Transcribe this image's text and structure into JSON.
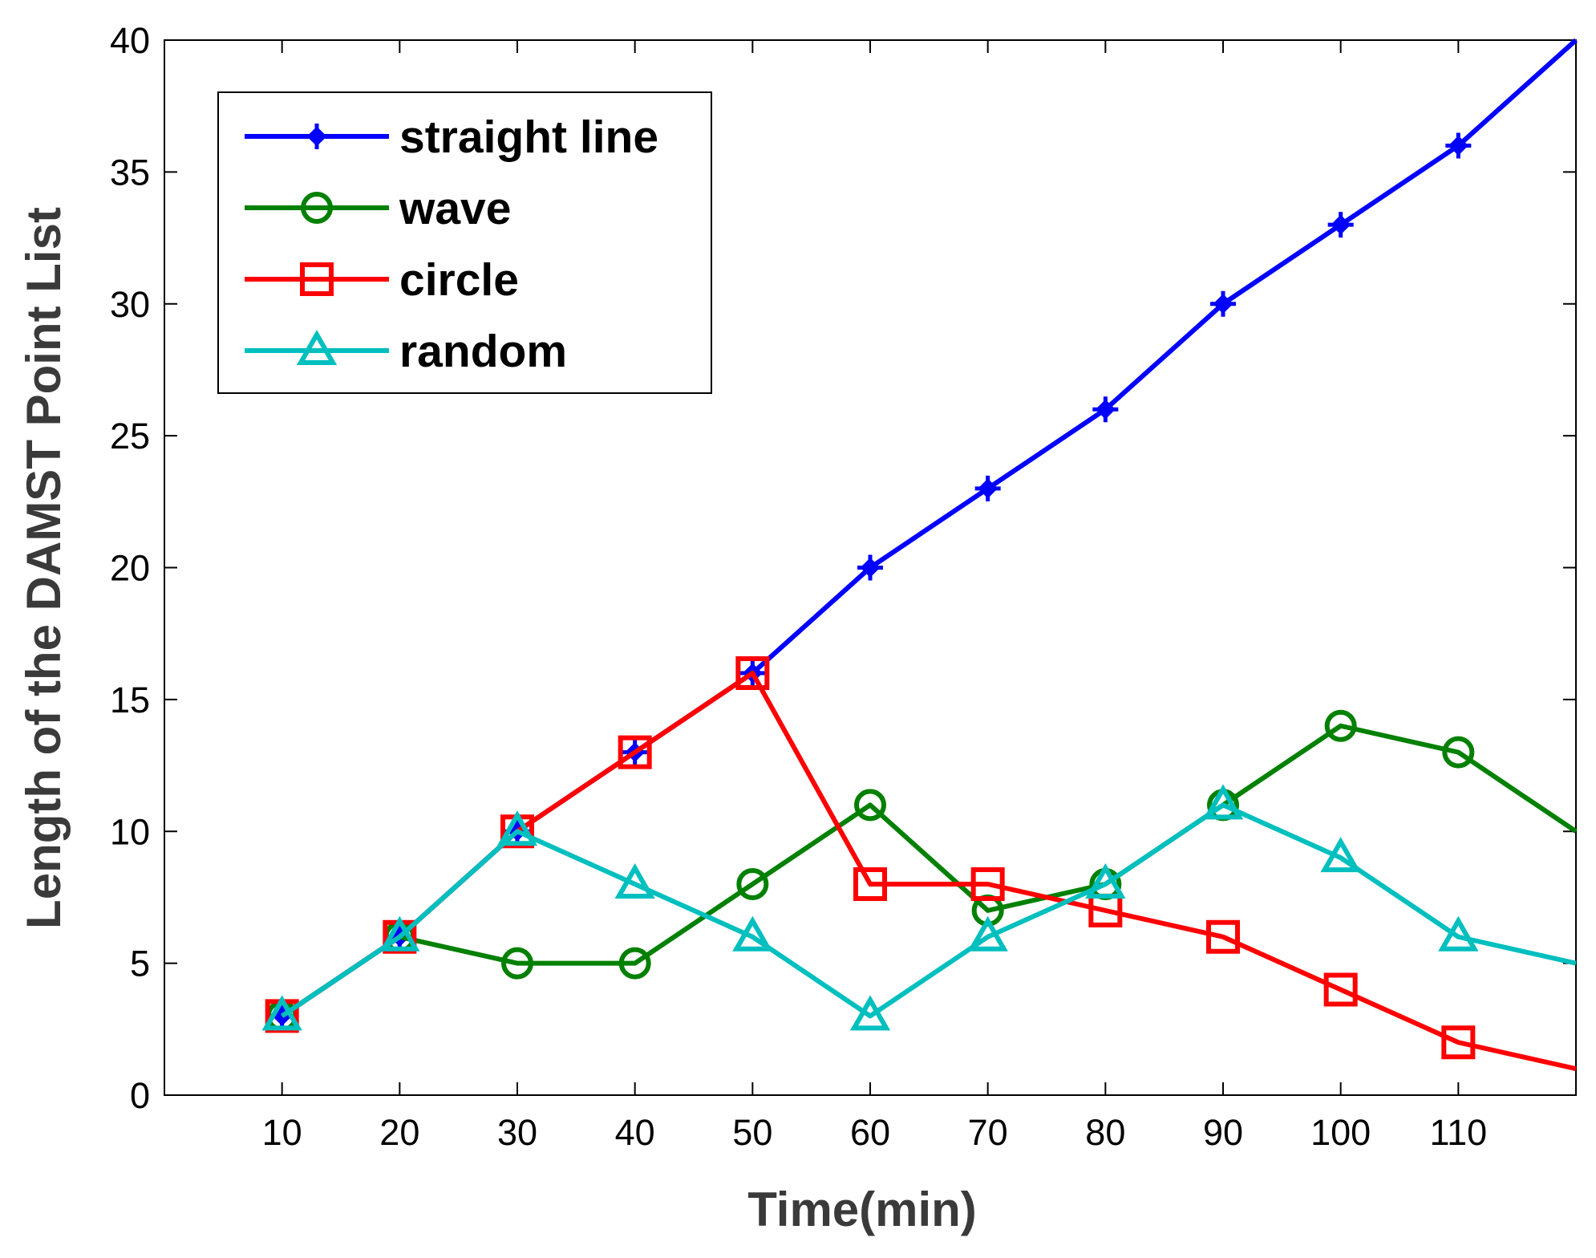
{
  "chart_data": {
    "type": "line",
    "title": "",
    "xlabel": "Time(min)",
    "ylabel": "Length of the DAMST Point List",
    "x": [
      10,
      20,
      30,
      40,
      50,
      60,
      70,
      80,
      90,
      100,
      110,
      120
    ],
    "xlim": [
      0,
      120
    ],
    "ylim": [
      0,
      40
    ],
    "xticks": [
      10,
      20,
      30,
      40,
      50,
      60,
      70,
      80,
      90,
      100,
      110
    ],
    "yticks": [
      0,
      5,
      10,
      15,
      20,
      25,
      30,
      35,
      40
    ],
    "grid": false,
    "legend_position": "top-left",
    "series": [
      {
        "name": "straight line",
        "marker": "plus-diamond",
        "color": "#0000ff",
        "values": [
          3,
          6,
          10,
          13,
          16,
          20,
          23,
          26,
          30,
          33,
          36,
          40
        ]
      },
      {
        "name": "wave",
        "marker": "circle",
        "color": "#008000",
        "values": [
          3,
          6,
          5,
          5,
          8,
          11,
          7,
          8,
          11,
          14,
          13,
          10
        ]
      },
      {
        "name": "circle",
        "marker": "square",
        "color": "#ff0000",
        "values": [
          3,
          6,
          10,
          13,
          16,
          8,
          8,
          7,
          6,
          4,
          2,
          1
        ]
      },
      {
        "name": "random",
        "marker": "triangle",
        "color": "#00bfbf",
        "values": [
          3,
          6,
          10,
          8,
          6,
          3,
          6,
          8,
          11,
          9,
          6,
          5
        ]
      }
    ]
  }
}
